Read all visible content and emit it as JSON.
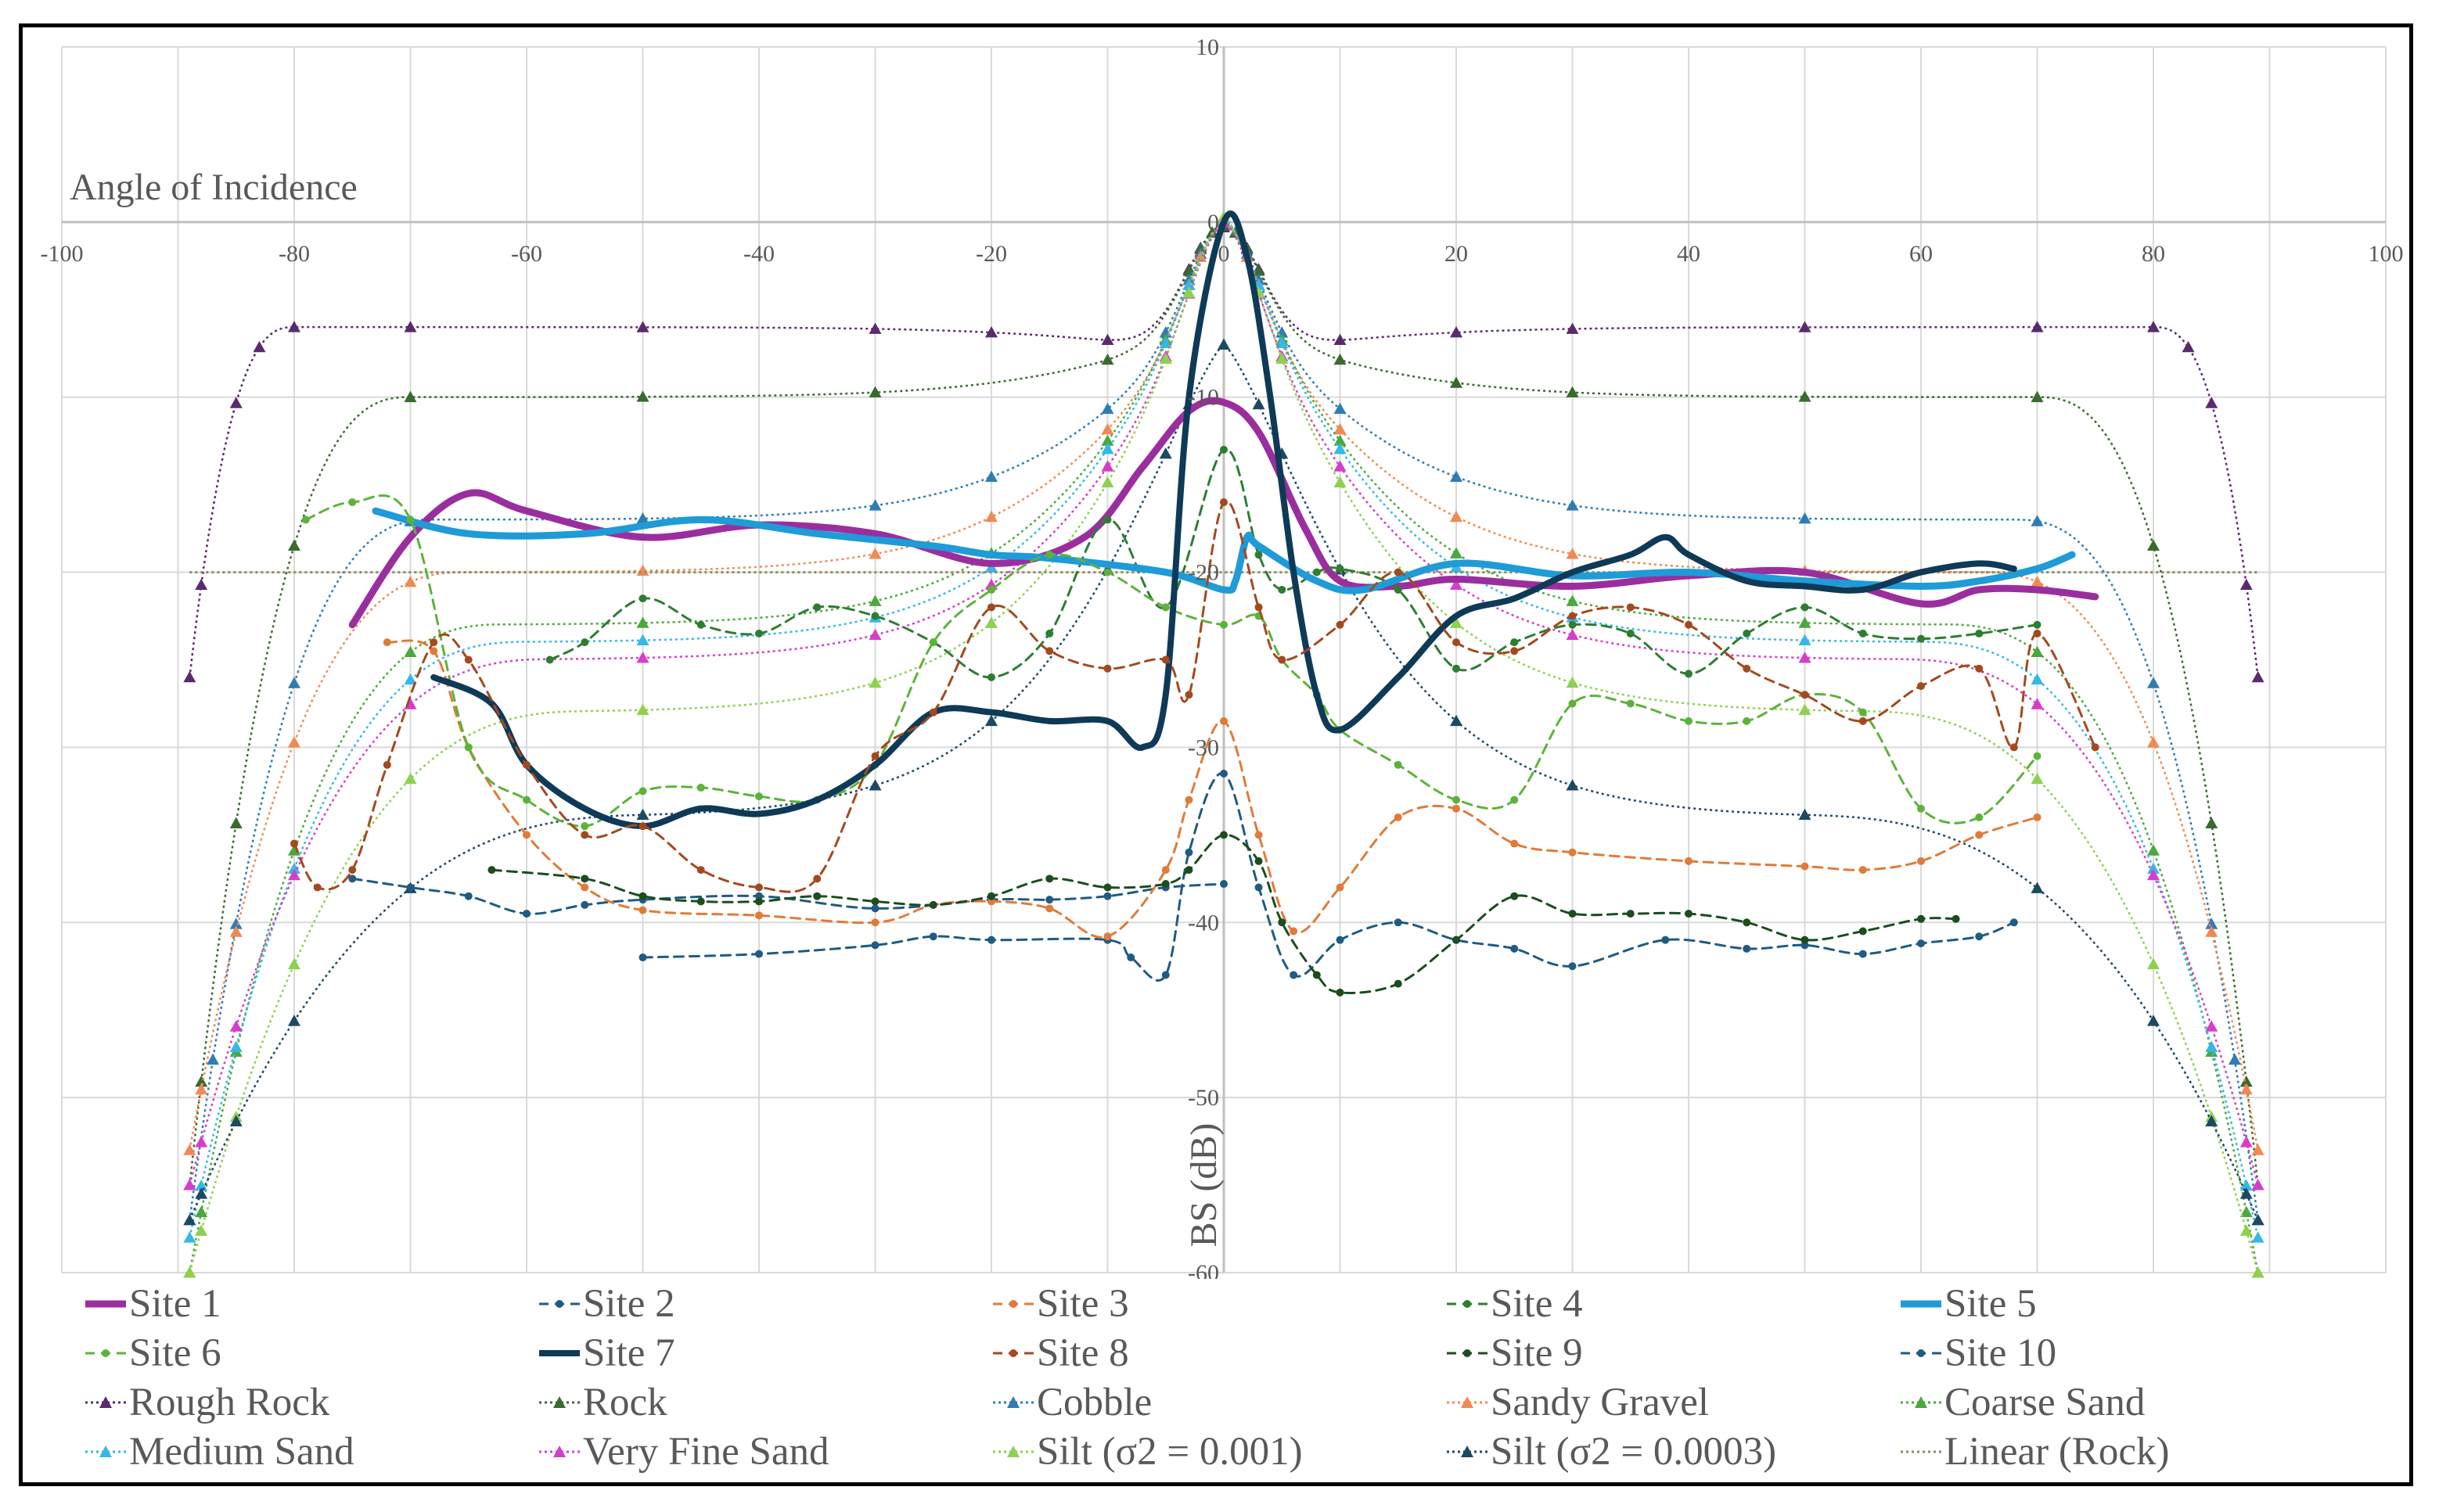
{
  "chart_data": {
    "type": "line",
    "xlabel": "Angle of Incidence",
    "ylabel": "BS (dB)",
    "xlim": [
      -100,
      100
    ],
    "ylim": [
      -60,
      10
    ],
    "x_ticks": [
      -100,
      -80,
      -60,
      -40,
      -20,
      0,
      20,
      40,
      60,
      80,
      100
    ],
    "y_ticks": [
      10,
      0,
      -10,
      -20,
      -30,
      -40,
      -50,
      -60
    ],
    "grid": true,
    "legend_position": "bottom",
    "series": [
      {
        "name": "Site 1",
        "color": "#9B2E9E",
        "style": "solid",
        "width": 9,
        "smooth": true,
        "x": [
          -75,
          -70,
          -65,
          -60,
          -50,
          -40,
          -30,
          -20,
          -12,
          -7,
          -3,
          0,
          3,
          7,
          10,
          15,
          20,
          30,
          40,
          50,
          60,
          65,
          70,
          75
        ],
        "y": [
          -23,
          -18,
          -15.5,
          -16.5,
          -18,
          -17.3,
          -17.8,
          -19.5,
          -18,
          -14,
          -10.8,
          -10.3,
          -12,
          -17.5,
          -20.5,
          -20.8,
          -20.4,
          -20.8,
          -20.2,
          -20,
          -21.8,
          -21,
          -21,
          -21.4
        ]
      },
      {
        "name": "Site 2",
        "color": "#1F5B82",
        "style": "dashed",
        "width": 3,
        "marker": "circle",
        "x": [
          -50,
          -40,
          -30,
          -25,
          -20,
          -10,
          -8,
          -5,
          -3,
          0,
          3,
          6,
          10,
          15,
          20,
          25,
          30,
          38,
          45,
          50,
          55,
          60,
          65,
          68
        ],
        "y": [
          -42,
          -41.8,
          -41.3,
          -40.8,
          -41,
          -41,
          -42,
          -43,
          -36,
          -31.5,
          -38,
          -43,
          -41,
          -40,
          -41,
          -41.5,
          -42.5,
          -41,
          -41.5,
          -41.3,
          -41.8,
          -41.2,
          -40.8,
          -40
        ],
        "x2": [
          -75,
          -70,
          -65,
          -60,
          -55,
          -50,
          -40,
          -30,
          -20,
          -15,
          -10,
          -5,
          0
        ],
        "y2": [
          -37.5,
          -38,
          -38.5,
          -39.5,
          -39,
          -38.7,
          -38.5,
          -39.2,
          -38.7,
          -38.7,
          -38.5,
          -38,
          -37.8
        ]
      },
      {
        "name": "Site 3",
        "color": "#E07B39",
        "style": "dashed",
        "width": 3,
        "marker": "circle",
        "x": [
          -72,
          -68,
          -65,
          -60,
          -55,
          -50,
          -40,
          -30,
          -25,
          -20,
          -15,
          -10,
          -5,
          -3,
          0,
          3,
          6,
          10,
          15,
          20,
          25,
          30,
          40,
          50,
          55,
          60,
          65,
          70
        ],
        "y": [
          -24,
          -24.5,
          -30,
          -35,
          -38,
          -39.3,
          -39.6,
          -40,
          -39,
          -38.8,
          -39.2,
          -40.8,
          -37,
          -33,
          -28.5,
          -35,
          -40.5,
          -38,
          -34,
          -33.5,
          -35.5,
          -36,
          -36.5,
          -36.8,
          -37,
          -36.5,
          -35,
          -34
        ],
        "point_x": [
          -72,
          -68,
          -63,
          -57,
          -50,
          -42,
          -35,
          -30,
          -25,
          -20,
          -10,
          -5,
          0,
          10,
          15,
          20,
          30,
          40,
          50,
          55,
          60,
          67,
          70
        ],
        "extra": [
          [
            -50,
            -39.3
          ],
          [
            -30,
            -39.8
          ]
        ]
      },
      {
        "name": "Site 4",
        "color": "#2E7D32",
        "style": "dashed",
        "width": 3,
        "marker": "circle",
        "x": [
          -58,
          -55,
          -50,
          -45,
          -40,
          -35,
          -30,
          -25,
          -20,
          -15,
          -10,
          -5,
          0,
          3,
          5,
          8,
          10,
          15,
          20,
          25,
          30,
          35,
          40,
          45,
          50,
          55,
          60,
          65,
          70
        ],
        "y": [
          -25,
          -24,
          -21.5,
          -23,
          -23.5,
          -22,
          -22.5,
          -24,
          -26,
          -23.5,
          -17,
          -22,
          -13,
          -19,
          -21,
          -20,
          -19.8,
          -21,
          -25.5,
          -24,
          -23,
          -23.5,
          -25.8,
          -23.5,
          -22,
          -23.5,
          -23.8,
          -23.5,
          -23
        ]
      },
      {
        "name": "Site 5",
        "color": "#1F9BD7",
        "style": "solid",
        "width": 9,
        "smooth": true,
        "x": [
          -73,
          -65,
          -55,
          -45,
          -35,
          -25,
          -20,
          -15,
          -5,
          0,
          1,
          2,
          3,
          8,
          12,
          20,
          30,
          40,
          50,
          60,
          65,
          70,
          73
        ],
        "y": [
          -16.5,
          -17.8,
          -17.8,
          -17,
          -17.8,
          -18.5,
          -19,
          -19.2,
          -20,
          -21,
          -20.5,
          -18,
          -18.5,
          -20.5,
          -21,
          -19.5,
          -20.2,
          -20,
          -20.5,
          -20.8,
          -20.5,
          -19.8,
          -19
        ]
      },
      {
        "name": "Site 6",
        "color": "#5DB33A",
        "style": "dashed",
        "width": 3,
        "marker": "circle",
        "x": [
          -79,
          -75,
          -70,
          -65,
          -60,
          -55,
          -50,
          -45,
          -40,
          -35,
          -30,
          -25,
          -20,
          -15,
          -10,
          -5,
          0,
          3,
          5,
          8,
          10,
          15,
          20,
          25,
          30,
          35,
          40,
          45,
          50,
          55,
          60,
          65,
          70
        ],
        "y": [
          -17,
          -16,
          -17,
          -30,
          -33,
          -34.5,
          -32.5,
          -32.3,
          -32.8,
          -33,
          -31,
          -24,
          -21,
          -19,
          -20,
          -22,
          -23,
          -22.5,
          -25,
          -27,
          -29,
          -31,
          -33,
          -33,
          -27.5,
          -27.5,
          -28.5,
          -28.5,
          -27,
          -28,
          -33.5,
          -34,
          -30.5
        ]
      },
      {
        "name": "Site 7",
        "color": "#0E3A57",
        "style": "solid",
        "width": 8,
        "smooth": true,
        "x": [
          -68,
          -63,
          -60,
          -55,
          -50,
          -45,
          -40,
          -35,
          -30,
          -25,
          -20,
          -15,
          -10,
          -7,
          -5,
          -3,
          0,
          2,
          4,
          6,
          8,
          10,
          15,
          20,
          25,
          30,
          35,
          38,
          40,
          45,
          50,
          55,
          60,
          65,
          68
        ],
        "y": [
          -26,
          -27.5,
          -31,
          -33.5,
          -34.5,
          -33.5,
          -33.8,
          -33,
          -31,
          -28,
          -28,
          -28.5,
          -28.5,
          -30,
          -27,
          -10,
          0,
          -2,
          -10,
          -20,
          -27,
          -29,
          -26,
          -22.5,
          -21.5,
          -20,
          -19,
          -18,
          -19,
          -20.5,
          -20.8,
          -21,
          -20,
          -19.5,
          -19.8
        ]
      },
      {
        "name": "Site 8",
        "color": "#A4491F",
        "style": "dashed",
        "width": 3,
        "marker": "circle",
        "x": [
          -80,
          -78,
          -75,
          -72,
          -68,
          -65,
          -60,
          -55,
          -50,
          -45,
          -40,
          -35,
          -30,
          -25,
          -20,
          -15,
          -10,
          -5,
          -3,
          0,
          3,
          5,
          10,
          15,
          20,
          25,
          30,
          35,
          40,
          45,
          50,
          55,
          60,
          65,
          68,
          70,
          75
        ],
        "y": [
          -35.5,
          -38,
          -37,
          -31,
          -24,
          -25,
          -31,
          -35,
          -34.5,
          -37,
          -38,
          -37.5,
          -30.5,
          -28,
          -22,
          -24.5,
          -25.5,
          -25,
          -27,
          -16,
          -22,
          -25,
          -23,
          -20,
          -24,
          -24.5,
          -22.5,
          -22,
          -23,
          -25.5,
          -27,
          -28.5,
          -26.5,
          -25.5,
          -30,
          -23.5,
          -30
        ]
      },
      {
        "name": "Site 9",
        "color": "#1B4D1F",
        "style": "dashed",
        "width": 3,
        "marker": "circle",
        "x": [
          -63,
          -55,
          -50,
          -45,
          -40,
          -35,
          -30,
          -25,
          -20,
          -15,
          -10,
          -5,
          -3,
          0,
          3,
          5,
          8,
          10,
          15,
          20,
          25,
          30,
          35,
          40,
          45,
          50,
          55,
          60,
          63
        ],
        "y": [
          -37,
          -37.5,
          -38.5,
          -38.8,
          -38.8,
          -38.5,
          -38.8,
          -39,
          -38.5,
          -37.5,
          -38,
          -37.8,
          -37,
          -35,
          -36.5,
          -40,
          -43,
          -44,
          -43.5,
          -41,
          -38.5,
          -39.5,
          -39.5,
          -39.5,
          -40,
          -41,
          -40.5,
          -39.8,
          -39.8
        ]
      },
      {
        "name": "Site 10",
        "color": "#1F5B82",
        "style": "dashed",
        "width": 3,
        "marker": "circle"
      },
      {
        "name": "Rough Rock",
        "color": "#5B2A6E",
        "style": "dotted",
        "marker": "triangle",
        "model": "rough_rock"
      },
      {
        "name": "Rock",
        "color": "#3A6B2E",
        "style": "dotted",
        "marker": "triangle",
        "model": "rock"
      },
      {
        "name": "Cobble",
        "color": "#2E7CB6",
        "style": "dotted",
        "marker": "triangle",
        "model": "cobble"
      },
      {
        "name": "Sandy Gravel",
        "color": "#F08A55",
        "style": "dotted",
        "marker": "triangle",
        "model": "sandy_gravel"
      },
      {
        "name": "Coarse Sand",
        "color": "#4BA83D",
        "style": "dotted",
        "marker": "triangle",
        "model": "coarse_sand"
      },
      {
        "name": "Medium Sand",
        "color": "#35B8E8",
        "style": "dotted",
        "marker": "triangle",
        "model": "medium_sand"
      },
      {
        "name": "Very Fine Sand",
        "color": "#D63EC9",
        "style": "dotted",
        "marker": "triangle",
        "model": "very_fine_sand"
      },
      {
        "name": "Silt (σ2 = 0.001)",
        "color": "#8FD14F",
        "style": "dotted",
        "marker": "triangle",
        "model": "silt_001"
      },
      {
        "name": "Silt (σ2 = 0.0003)",
        "color": "#1C4963",
        "style": "dotted",
        "marker": "triangle",
        "model": "silt_0003"
      },
      {
        "name": "Linear (Rock)",
        "color": "#8C8C5A",
        "style": "dotted",
        "model": "linear_rock"
      }
    ],
    "models": {
      "rough_rock": {
        "peak": -0.3,
        "dip": -7.5,
        "flat": -6,
        "edge": -26,
        "knee": 80,
        "angles": [
          -89,
          -88,
          -85,
          -83,
          -80,
          -70,
          -50,
          -30,
          -20,
          -10,
          -3,
          -2,
          -1,
          0,
          1,
          2,
          3,
          10,
          20,
          30,
          50,
          70,
          80,
          83,
          85,
          88,
          89
        ]
      },
      "rock": {
        "peak": -0.2,
        "dip": -6,
        "flat": -10,
        "edge": -55,
        "knee": 70,
        "angles": [
          -89,
          -88,
          -85,
          -80,
          -70,
          -50,
          -30,
          -10,
          -3,
          -2,
          -1,
          0,
          1,
          2,
          3,
          10,
          20,
          30,
          50,
          70,
          80,
          85,
          88,
          89
        ]
      },
      "cobble": {
        "peak": 0,
        "dip": -5,
        "flat": -17,
        "edge": -57,
        "knee": 68,
        "angles": [
          -89,
          -87,
          -85,
          -80,
          -70,
          -50,
          -30,
          -20,
          -10,
          -5,
          -3,
          -2,
          0,
          2,
          3,
          5,
          10,
          20,
          30,
          50,
          70,
          80,
          85,
          87,
          89
        ]
      },
      "sandy_gravel": {
        "peak": 0,
        "dip": -4.5,
        "flat": -20,
        "edge": -53,
        "knee": 65,
        "angles": [
          -89,
          -88,
          -85,
          -80,
          -70,
          -50,
          -30,
          -20,
          -10,
          -5,
          -3,
          -2,
          0,
          2,
          3,
          5,
          10,
          20,
          30,
          50,
          70,
          80,
          85,
          88,
          89
        ]
      },
      "coarse_sand": {
        "peak": 0,
        "dip": -3,
        "flat": -23,
        "edge": -60,
        "knee": 62,
        "angles": [
          -89,
          -88,
          -85,
          -80,
          -70,
          -50,
          -30,
          -20,
          -10,
          -5,
          -3,
          0,
          3,
          5,
          10,
          20,
          30,
          50,
          70,
          80,
          85,
          88,
          89
        ]
      },
      "medium_sand": {
        "peak": 0.2,
        "dip": -3,
        "flat": -24,
        "edge": -58,
        "knee": 60,
        "angles": [
          -89,
          -88,
          -85,
          -80,
          -70,
          -50,
          -30,
          -20,
          -10,
          -5,
          -3,
          0,
          3,
          5,
          10,
          20,
          30,
          50,
          70,
          80,
          85,
          88,
          89
        ]
      },
      "very_fine_sand": {
        "peak": 0,
        "dip": -4,
        "flat": -25,
        "edge": -55,
        "knee": 58,
        "angles": [
          -89,
          -88,
          -85,
          -80,
          -70,
          -50,
          -30,
          -20,
          -10,
          -5,
          -3,
          0,
          3,
          5,
          10,
          20,
          30,
          50,
          70,
          80,
          85,
          88,
          89
        ]
      },
      "silt_001": {
        "peak": 0.3,
        "dip": -3,
        "flat": -28,
        "edge": -60,
        "knee": 55,
        "angles": [
          -89,
          -88,
          -85,
          -80,
          -70,
          -50,
          -30,
          -20,
          -10,
          -5,
          -3,
          0,
          3,
          5,
          10,
          20,
          30,
          50,
          70,
          80,
          85,
          88,
          89
        ]
      },
      "silt_0003": {
        "peak": -7,
        "dip": -7,
        "flat": -34,
        "edge": -57,
        "knee": 50,
        "angles": [
          -89,
          -88,
          -85,
          -80,
          -70,
          -50,
          -30,
          -20,
          -10,
          -5,
          -3,
          0,
          3,
          5,
          10,
          20,
          30,
          50,
          70,
          80,
          85,
          88,
          89
        ]
      },
      "linear_rock": {
        "x": [
          -89,
          89
        ],
        "y": [
          -20,
          -20
        ]
      }
    }
  }
}
